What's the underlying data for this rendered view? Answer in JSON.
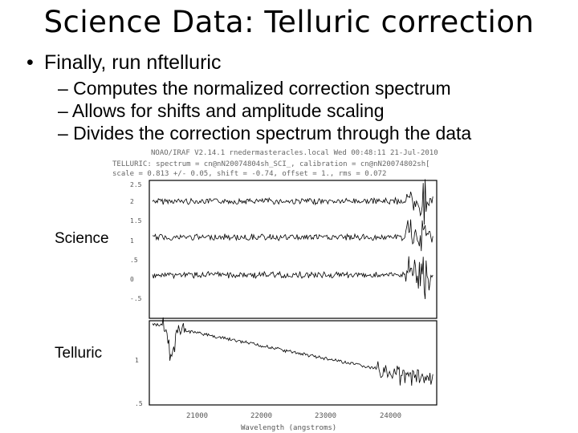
{
  "slide": {
    "title": "Science Data: Telluric correction",
    "bullet": "Finally, run nftelluric",
    "sub_bullets": [
      "– Computes the normalized correction spectrum",
      "– Allows for shifts and amplitude scaling",
      "– Divides the correction spectrum through the data"
    ]
  },
  "figure": {
    "header_lines": [
      "NOAO/IRAF V2.14.1 rnedermasteracles.local Wed 00:48:11 21-Jul-2010",
      "TELLURIC: spectrum = cn@nN20074804sh_SCI_, calibration = cn@nN20074802sh[",
      "scale = 0.813 +/- 0.05, shift = -0.74, offset = 1., rms = 0.072"
    ],
    "science_label": "Science",
    "telluric_label": "Telluric",
    "xlabel": "Wavelength (angstroms)",
    "x_ticks": [
      "21000",
      "22000",
      "23000",
      "24000"
    ],
    "science_y_ticks": [
      "2.5",
      "2",
      "1.5",
      "1",
      ".5",
      "0",
      "-.5"
    ],
    "telluric_y_ticks": [
      "1",
      ".5"
    ]
  }
}
